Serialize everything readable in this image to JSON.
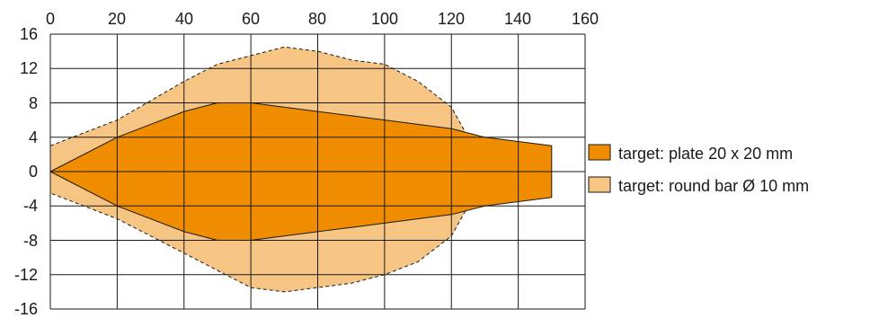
{
  "chart_data": {
    "type": "area",
    "xlim": [
      0,
      160
    ],
    "ylim": [
      -16,
      16
    ],
    "x_ticks": [
      "0",
      "20",
      "40",
      "60",
      "80",
      "100",
      "120",
      "140",
      "160"
    ],
    "y_ticks": [
      "16",
      "12",
      "8",
      "4",
      "0",
      "-4",
      "-8",
      "-12",
      "-16"
    ],
    "grid": true,
    "legend_position": "right",
    "series": [
      {
        "name": "target: round bar Ø 10 mm",
        "color": "#f6c584",
        "outline": "dashed",
        "points": [
          [
            0,
            3
          ],
          [
            20,
            6
          ],
          [
            40,
            10.5
          ],
          [
            50,
            12.5
          ],
          [
            60,
            13.5
          ],
          [
            70,
            14.5
          ],
          [
            80,
            14
          ],
          [
            90,
            13
          ],
          [
            100,
            12.5
          ],
          [
            110,
            10.5
          ],
          [
            120,
            7.5
          ],
          [
            125,
            4
          ],
          [
            130,
            0
          ],
          [
            125,
            -4
          ],
          [
            120,
            -7.5
          ],
          [
            110,
            -10.5
          ],
          [
            100,
            -12
          ],
          [
            90,
            -13
          ],
          [
            80,
            -13.5
          ],
          [
            70,
            -14
          ],
          [
            60,
            -13.5
          ],
          [
            50,
            -11.5
          ],
          [
            40,
            -9.5
          ],
          [
            20,
            -5.5
          ],
          [
            0,
            -2.5
          ]
        ]
      },
      {
        "name": "target: plate 20 x 20 mm",
        "color": "#f08c00",
        "outline": "solid",
        "points": [
          [
            0,
            0
          ],
          [
            20,
            4
          ],
          [
            40,
            7
          ],
          [
            50,
            8
          ],
          [
            60,
            8
          ],
          [
            80,
            7
          ],
          [
            90,
            6.5
          ],
          [
            100,
            6
          ],
          [
            120,
            5
          ],
          [
            130,
            4
          ],
          [
            140,
            3.5
          ],
          [
            150,
            3
          ],
          [
            150,
            -3
          ],
          [
            140,
            -3.5
          ],
          [
            130,
            -4
          ],
          [
            120,
            -5
          ],
          [
            100,
            -6
          ],
          [
            90,
            -6.5
          ],
          [
            80,
            -7
          ],
          [
            60,
            -8
          ],
          [
            50,
            -8
          ],
          [
            40,
            -7
          ],
          [
            20,
            -4
          ],
          [
            0,
            0
          ]
        ]
      }
    ],
    "legend": [
      {
        "label": "target: plate 20 x 20 mm",
        "color": "#f08c00"
      },
      {
        "label": "target: round bar Ø 10 mm",
        "color": "#f6c584"
      }
    ]
  }
}
